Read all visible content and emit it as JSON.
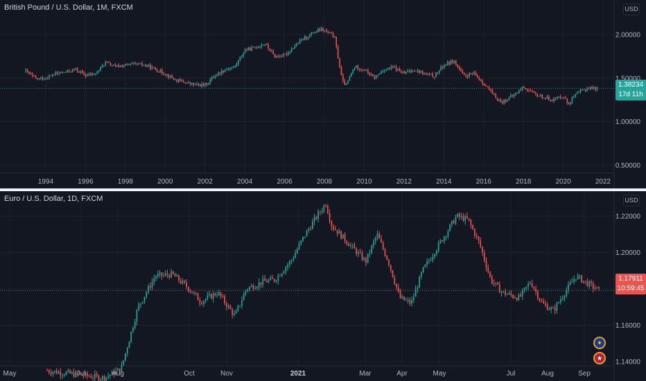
{
  "colors": {
    "up": "#26a69a",
    "down": "#ef5350",
    "grid": "#1e222d",
    "axis_text": "#b2b5be",
    "bg": "#131722"
  },
  "top": {
    "title": "British Pound / U.S. Dollar, 1M, FXCM",
    "currency": "USD",
    "last_price": "1.38234",
    "countdown": "17d 11h",
    "tag_color": "#26a69a"
  },
  "bottom": {
    "title": "Euro / U.S. Dollar, 1D, FXCM",
    "currency": "USD",
    "last_price": "1.17911",
    "countdown": "10:59:45",
    "tag_color": "#ef5350"
  },
  "chart_data": [
    {
      "type": "candlestick",
      "title": "British Pound / U.S. Dollar, 1M, FXCM",
      "x_ticks": [
        "1994",
        "1996",
        "1998",
        "2000",
        "2002",
        "2004",
        "2006",
        "2008",
        "2010",
        "2012",
        "2014",
        "2016",
        "2018",
        "2020",
        "2022"
      ],
      "y_ticks": [
        "2.00000",
        "1.50000",
        "1.00000",
        "0.50000"
      ],
      "x_range": [
        1992.5,
        2022.7
      ],
      "y_range": [
        0.4,
        2.25
      ],
      "last_value": 1.38234,
      "price_path": [
        [
          1993.0,
          1.58
        ],
        [
          1993.5,
          1.49
        ],
        [
          1994.0,
          1.5
        ],
        [
          1994.5,
          1.55
        ],
        [
          1995.0,
          1.57
        ],
        [
          1995.5,
          1.6
        ],
        [
          1996.0,
          1.53
        ],
        [
          1996.5,
          1.55
        ],
        [
          1997.0,
          1.68
        ],
        [
          1997.5,
          1.63
        ],
        [
          1998.0,
          1.65
        ],
        [
          1998.5,
          1.66
        ],
        [
          1999.0,
          1.65
        ],
        [
          1999.5,
          1.6
        ],
        [
          2000.0,
          1.55
        ],
        [
          2000.5,
          1.48
        ],
        [
          2001.0,
          1.45
        ],
        [
          2001.5,
          1.42
        ],
        [
          2002.0,
          1.42
        ],
        [
          2002.5,
          1.53
        ],
        [
          2003.0,
          1.6
        ],
        [
          2003.5,
          1.63
        ],
        [
          2004.0,
          1.82
        ],
        [
          2004.5,
          1.85
        ],
        [
          2005.0,
          1.9
        ],
        [
          2005.5,
          1.75
        ],
        [
          2006.0,
          1.76
        ],
        [
          2006.5,
          1.87
        ],
        [
          2007.0,
          1.96
        ],
        [
          2007.5,
          2.03
        ],
        [
          2007.9,
          2.06
        ],
        [
          2008.5,
          1.98
        ],
        [
          2008.9,
          1.46
        ],
        [
          2009.1,
          1.42
        ],
        [
          2009.5,
          1.63
        ],
        [
          2010.0,
          1.6
        ],
        [
          2010.5,
          1.5
        ],
        [
          2011.0,
          1.6
        ],
        [
          2011.5,
          1.62
        ],
        [
          2012.0,
          1.55
        ],
        [
          2012.5,
          1.6
        ],
        [
          2013.0,
          1.55
        ],
        [
          2013.5,
          1.52
        ],
        [
          2014.0,
          1.65
        ],
        [
          2014.5,
          1.7
        ],
        [
          2015.0,
          1.52
        ],
        [
          2015.5,
          1.55
        ],
        [
          2016.0,
          1.44
        ],
        [
          2016.5,
          1.3
        ],
        [
          2016.9,
          1.22
        ],
        [
          2017.5,
          1.3
        ],
        [
          2018.0,
          1.4
        ],
        [
          2018.5,
          1.32
        ],
        [
          2019.0,
          1.28
        ],
        [
          2019.5,
          1.25
        ],
        [
          2020.0,
          1.3
        ],
        [
          2020.25,
          1.2
        ],
        [
          2020.5,
          1.28
        ],
        [
          2020.9,
          1.35
        ],
        [
          2021.3,
          1.39
        ],
        [
          2021.7,
          1.38234
        ]
      ]
    },
    {
      "type": "candlestick",
      "title": "Euro / U.S. Dollar, 1D, FXCM",
      "x_ticks": [
        "May",
        "Jul",
        "Aug",
        "Oct",
        "Nov",
        "2021",
        "Mar",
        "Apr",
        "May",
        "Jul",
        "Aug",
        "Sep"
      ],
      "y_ticks": [
        "1.22000",
        "1.20000",
        "1.18000",
        "1.16000",
        "1.14000"
      ],
      "y_range": [
        1.132,
        1.2295
      ],
      "last_value": 1.17911,
      "price_path": [
        [
          0,
          1.135
        ],
        [
          0.1,
          1.131
        ],
        [
          0.13,
          1.136
        ],
        [
          0.16,
          1.17
        ],
        [
          0.19,
          1.187
        ],
        [
          0.22,
          1.188
        ],
        [
          0.25,
          1.18
        ],
        [
          0.27,
          1.173
        ],
        [
          0.3,
          1.178
        ],
        [
          0.33,
          1.165
        ],
        [
          0.35,
          1.18
        ],
        [
          0.38,
          1.184
        ],
        [
          0.4,
          1.185
        ],
        [
          0.43,
          1.196
        ],
        [
          0.45,
          1.208
        ],
        [
          0.47,
          1.218
        ],
        [
          0.49,
          1.227
        ],
        [
          0.5,
          1.215
        ],
        [
          0.53,
          1.205
        ],
        [
          0.56,
          1.195
        ],
        [
          0.58,
          1.21
        ],
        [
          0.6,
          1.195
        ],
        [
          0.62,
          1.175
        ],
        [
          0.64,
          1.172
        ],
        [
          0.66,
          1.19
        ],
        [
          0.69,
          1.205
        ],
        [
          0.72,
          1.22
        ],
        [
          0.74,
          1.218
        ],
        [
          0.76,
          1.205
        ],
        [
          0.78,
          1.185
        ],
        [
          0.8,
          1.178
        ],
        [
          0.83,
          1.175
        ],
        [
          0.85,
          1.184
        ],
        [
          0.87,
          1.172
        ],
        [
          0.89,
          1.168
        ],
        [
          0.91,
          1.178
        ],
        [
          0.93,
          1.187
        ],
        [
          0.95,
          1.183
        ],
        [
          0.97,
          1.17911
        ]
      ]
    }
  ]
}
